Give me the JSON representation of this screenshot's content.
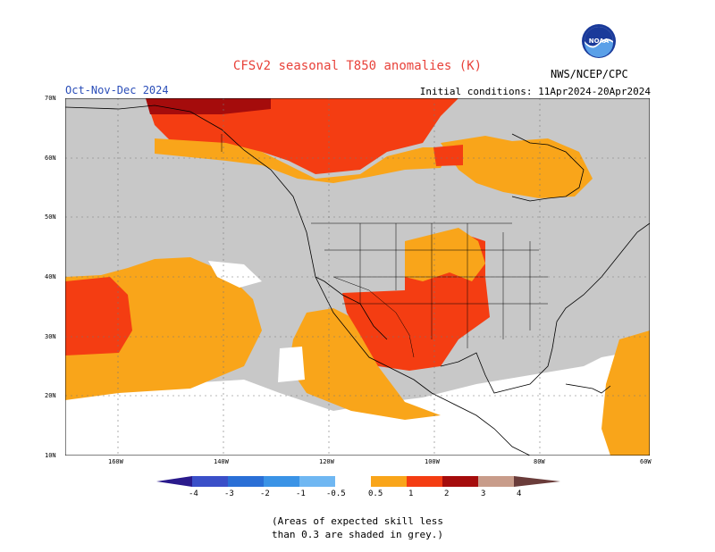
{
  "title": "CFSv2 seasonal T850 anomalies (K)",
  "season": "Oct-Nov-Dec 2024",
  "initial_conditions": "Initial conditions: 11Apr2024-20Apr2024",
  "agency": "NWS/NCEP/CPC",
  "logo": {
    "text": "NOAA",
    "icon": "noaa-logo-icon"
  },
  "lat_labels": [
    "70N",
    "60N",
    "50N",
    "40N",
    "30N",
    "20N",
    "10N"
  ],
  "lon_labels": [
    "160W",
    "140W",
    "120W",
    "100W",
    "80W",
    "60W"
  ],
  "colorbar": {
    "labels": [
      "-4",
      "-3",
      "-2",
      "-1",
      "-0.5",
      "0.5",
      "1",
      "2",
      "3",
      "4"
    ],
    "colors": [
      "#2a1a8c",
      "#3a4fc8",
      "#2a6fd6",
      "#3a93e6",
      "#6fb7f2",
      "#ffffff",
      "#f9a51a",
      "#f43d12",
      "#a50c0c",
      "#c89c8a",
      "#6a3c3a"
    ]
  },
  "note_lines": [
    "(Areas of expected skill less",
    "than 0.3 are shaded in grey.)"
  ],
  "colors": {
    "grey": "#c8c8c8",
    "orange": "#f9a51a",
    "red": "#f43d12",
    "darkred": "#a50c0c"
  }
}
